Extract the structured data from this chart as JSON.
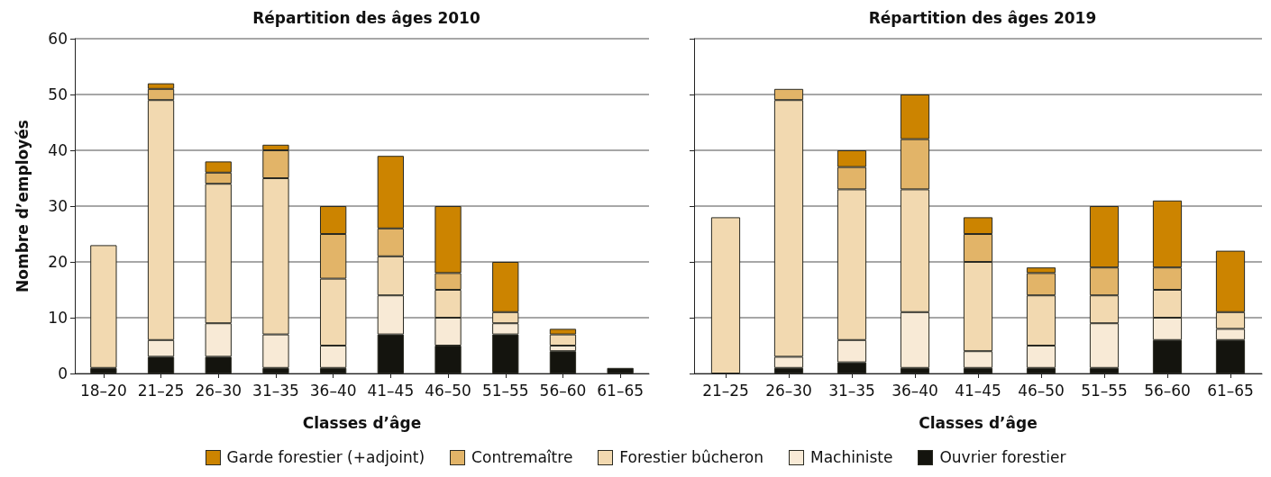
{
  "chart_data": [
    {
      "type": "bar",
      "title": "Répartition des âges 2010",
      "xlabel": "Classes d’âge",
      "ylabel": "Nombre d’employés",
      "categories": [
        "18–20",
        "21–25",
        "26–30",
        "31–35",
        "36–40",
        "41–45",
        "46–50",
        "51–55",
        "56–60",
        "61–65"
      ],
      "stacked": true,
      "ylim": [
        0,
        60
      ],
      "yticks": [
        0,
        10,
        20,
        30,
        40,
        50,
        60
      ],
      "grid": "y",
      "legend": "bottom",
      "series": [
        {
          "name": "Ouvrier forestier",
          "color": "#14140e",
          "values": [
            1,
            3,
            3,
            1,
            1,
            7,
            5,
            7,
            4,
            1
          ]
        },
        {
          "name": "Machiniste",
          "color": "#f8ead6",
          "values": [
            0,
            3,
            6,
            6,
            4,
            7,
            5,
            2,
            1,
            0
          ]
        },
        {
          "name": "Forestier bûcheron",
          "color": "#f2d9b0",
          "values": [
            22,
            43,
            25,
            28,
            12,
            7,
            5,
            2,
            2,
            0
          ]
        },
        {
          "name": "Contremaître",
          "color": "#e2b468",
          "values": [
            0,
            2,
            2,
            5,
            8,
            5,
            3,
            0,
            0,
            0
          ]
        },
        {
          "name": "Garde forestier (+adjoint)",
          "color": "#cc8400",
          "values": [
            0,
            1,
            2,
            1,
            5,
            13,
            12,
            9,
            1,
            0
          ]
        }
      ]
    },
    {
      "type": "bar",
      "title": "Répartition des âges 2019",
      "xlabel": "Classes d’âge",
      "categories": [
        "21–25",
        "26–30",
        "31–35",
        "36–40",
        "41–45",
        "46–50",
        "51–55",
        "56–60",
        "61–65"
      ],
      "stacked": true,
      "ylim": [
        0,
        60
      ],
      "yticks": [
        0,
        10,
        20,
        30,
        40,
        50,
        60
      ],
      "grid": "y",
      "legend": "bottom",
      "tick_labels": "x",
      "series": [
        {
          "name": "Ouvrier forestier",
          "color": "#14140e",
          "values": [
            0,
            1,
            2,
            1,
            1,
            1,
            1,
            6,
            6
          ]
        },
        {
          "name": "Machiniste",
          "color": "#f8ead6",
          "values": [
            0,
            2,
            4,
            10,
            3,
            4,
            8,
            4,
            2
          ]
        },
        {
          "name": "Forestier bûcheron",
          "color": "#f2d9b0",
          "values": [
            28,
            46,
            27,
            22,
            16,
            9,
            5,
            5,
            3
          ]
        },
        {
          "name": "Contremaître",
          "color": "#e2b468",
          "values": [
            0,
            2,
            4,
            9,
            5,
            4,
            5,
            4,
            0
          ]
        },
        {
          "name": "Garde forestier (+adjoint)",
          "color": "#cc8400",
          "values": [
            0,
            0,
            3,
            8,
            3,
            1,
            11,
            12,
            11
          ]
        }
      ]
    }
  ]
}
